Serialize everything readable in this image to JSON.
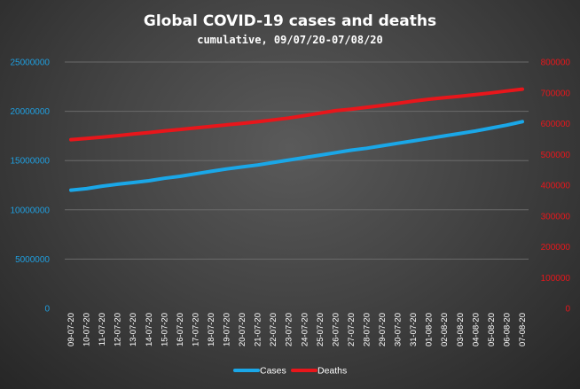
{
  "chart_data": {
    "type": "line",
    "title": "Global  COVID-19  cases  and  deaths",
    "subtitle": "cumulative, 09/07/20-07/08/20",
    "categories": [
      "09-07-20",
      "10-07-20",
      "11-07-20",
      "12-07-20",
      "13-07-20",
      "14-07-20",
      "15-07-20",
      "16-07-20",
      "17-07-20",
      "18-07-20",
      "19-07-20",
      "20-07-20",
      "21-07-20",
      "22-07-20",
      "23-07-20",
      "24-07-20",
      "25-07-20",
      "26-07-20",
      "27-07-20",
      "28-07-20",
      "29-07-20",
      "30-07-20",
      "31-07-20",
      "01-08-20",
      "02-08-20",
      "03-08-20",
      "04-08-20",
      "05-08-20",
      "06-08-20",
      "07-08-20"
    ],
    "y_left": {
      "ylim": [
        0,
        25000000
      ],
      "ticks": [
        "0",
        "5000000",
        "10000000",
        "15000000",
        "20000000",
        "25000000"
      ],
      "color": "#1f9fe0"
    },
    "y_right": {
      "ylim": [
        0,
        800000
      ],
      "ticks": [
        "0",
        "100000",
        "200000",
        "300000",
        "400000",
        "500000",
        "600000",
        "700000",
        "800000"
      ],
      "color": "#e8161b"
    },
    "series": [
      {
        "name": "Cases",
        "axis": "left",
        "color": "#1aa7e8",
        "values": [
          12000000,
          12150000,
          12400000,
          12600000,
          12770000,
          12950000,
          13200000,
          13400000,
          13650000,
          13900000,
          14150000,
          14350000,
          14550000,
          14800000,
          15050000,
          15300000,
          15550000,
          15800000,
          16050000,
          16250000,
          16500000,
          16750000,
          17000000,
          17250000,
          17500000,
          17750000,
          18000000,
          18300000,
          18600000,
          18950000
        ]
      },
      {
        "name": "Deaths",
        "axis": "right",
        "color": "#e8161b",
        "values": [
          548000,
          552000,
          556000,
          561000,
          566000,
          571000,
          576000,
          581000,
          586000,
          591000,
          596000,
          601000,
          606000,
          612000,
          618000,
          626000,
          634000,
          642000,
          647000,
          653000,
          659000,
          666000,
          673000,
          679000,
          684000,
          689000,
          694000,
          700000,
          706000,
          712000
        ]
      }
    ],
    "grid": true,
    "legend": "bottom"
  }
}
